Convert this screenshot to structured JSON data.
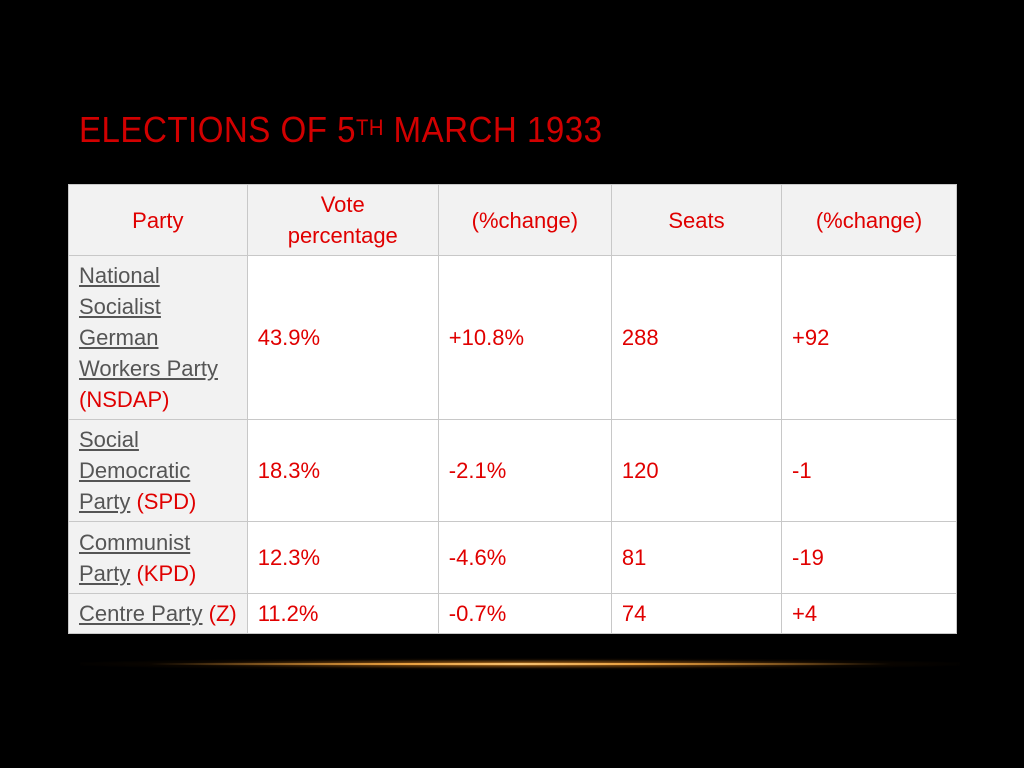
{
  "title": {
    "prefix": "Elections of 5",
    "superscript": "th",
    "suffix": " March 1933"
  },
  "table": {
    "headers": [
      "Party",
      "Vote percentage",
      "(%change)",
      "Seats",
      "(%change)"
    ],
    "rows": [
      {
        "party_name": "National Socialist German Workers Party",
        "party_abbr": " (NSDAP)",
        "vote": "43.9%",
        "vote_change": "+10.8%",
        "seats": "288",
        "seats_change": "+92"
      },
      {
        "party_name": "Social Democratic Party",
        "party_abbr": " (SPD)",
        "vote": "18.3%",
        "vote_change": "-2.1%",
        "seats": "120",
        "seats_change": "-1"
      },
      {
        "party_name": "Communist Party",
        "party_abbr": " (KPD)",
        "vote": "12.3%",
        "vote_change": "-4.6%",
        "seats": "81",
        "seats_change": "-19"
      },
      {
        "party_name": "Centre Party",
        "party_abbr": " (Z)",
        "vote": "11.2%",
        "vote_change": "-0.7%",
        "seats": "74",
        "seats_change": "+4"
      }
    ]
  },
  "colors": {
    "background": "#000000",
    "title": "#d10000",
    "cell_text": "#e00000",
    "link_text": "#555555",
    "header_bg": "#f2f2f2"
  }
}
